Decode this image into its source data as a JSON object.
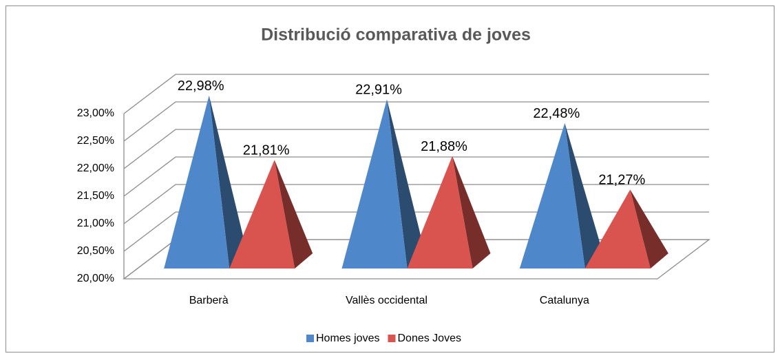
{
  "chart_data": {
    "type": "pyramid3d",
    "title": "Distribució comparativa de joves",
    "categories": [
      "Barberà",
      "Vallès occidental",
      "Catalunya"
    ],
    "series": [
      {
        "name": "Homes joves",
        "color": "#4f88ca",
        "values": [
          22.98,
          22.91,
          22.48
        ],
        "value_labels": [
          "22,98%",
          "22,91%",
          "22,48%"
        ]
      },
      {
        "name": "Dones Joves",
        "color": "#d9534f",
        "values": [
          21.81,
          21.88,
          21.27
        ],
        "value_labels": [
          "21,81%",
          "21,88%",
          "21,27%"
        ]
      }
    ],
    "ylim": [
      20,
      23
    ],
    "yticks": [
      {
        "value": 20,
        "label": "20,00%"
      },
      {
        "value": 20.5,
        "label": "20,50%"
      },
      {
        "value": 21,
        "label": "21,00%"
      },
      {
        "value": 21.5,
        "label": "21,50%"
      },
      {
        "value": 22,
        "label": "22,00%"
      },
      {
        "value": 22.5,
        "label": "22,50%"
      },
      {
        "value": 23,
        "label": "23,00%"
      }
    ],
    "grid": true,
    "legend": "bottom"
  }
}
